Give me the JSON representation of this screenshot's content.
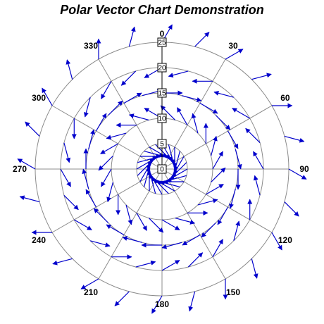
{
  "chart_data": {
    "type": "polar-vector",
    "title": "Polar Vector Chart Demonstration",
    "angle_ticks": [
      0,
      30,
      60,
      90,
      120,
      150,
      180,
      210,
      240,
      270,
      300,
      330
    ],
    "angle_labels": [
      "0",
      "30",
      "60",
      "90",
      "120",
      "150",
      "180",
      "210",
      "240",
      "270",
      "300",
      "330"
    ],
    "radial_ticks": [
      0,
      5,
      10,
      15,
      20,
      25
    ],
    "radial_labels": [
      "0",
      "5",
      "10",
      "15",
      "20",
      "25"
    ],
    "rlim": [
      0,
      25
    ],
    "grid": true,
    "colors": {
      "vector": "#0000cc",
      "axis": "#000000",
      "grid": "#8c8c8c"
    },
    "series": [
      {
        "name": "",
        "r_values": [
          5,
          10,
          15,
          20,
          25
        ],
        "angle_step": 15,
        "vector_length": 4,
        "vector_direction_formula": "angle + r*30 (degrees, clockwise from north)"
      }
    ]
  }
}
